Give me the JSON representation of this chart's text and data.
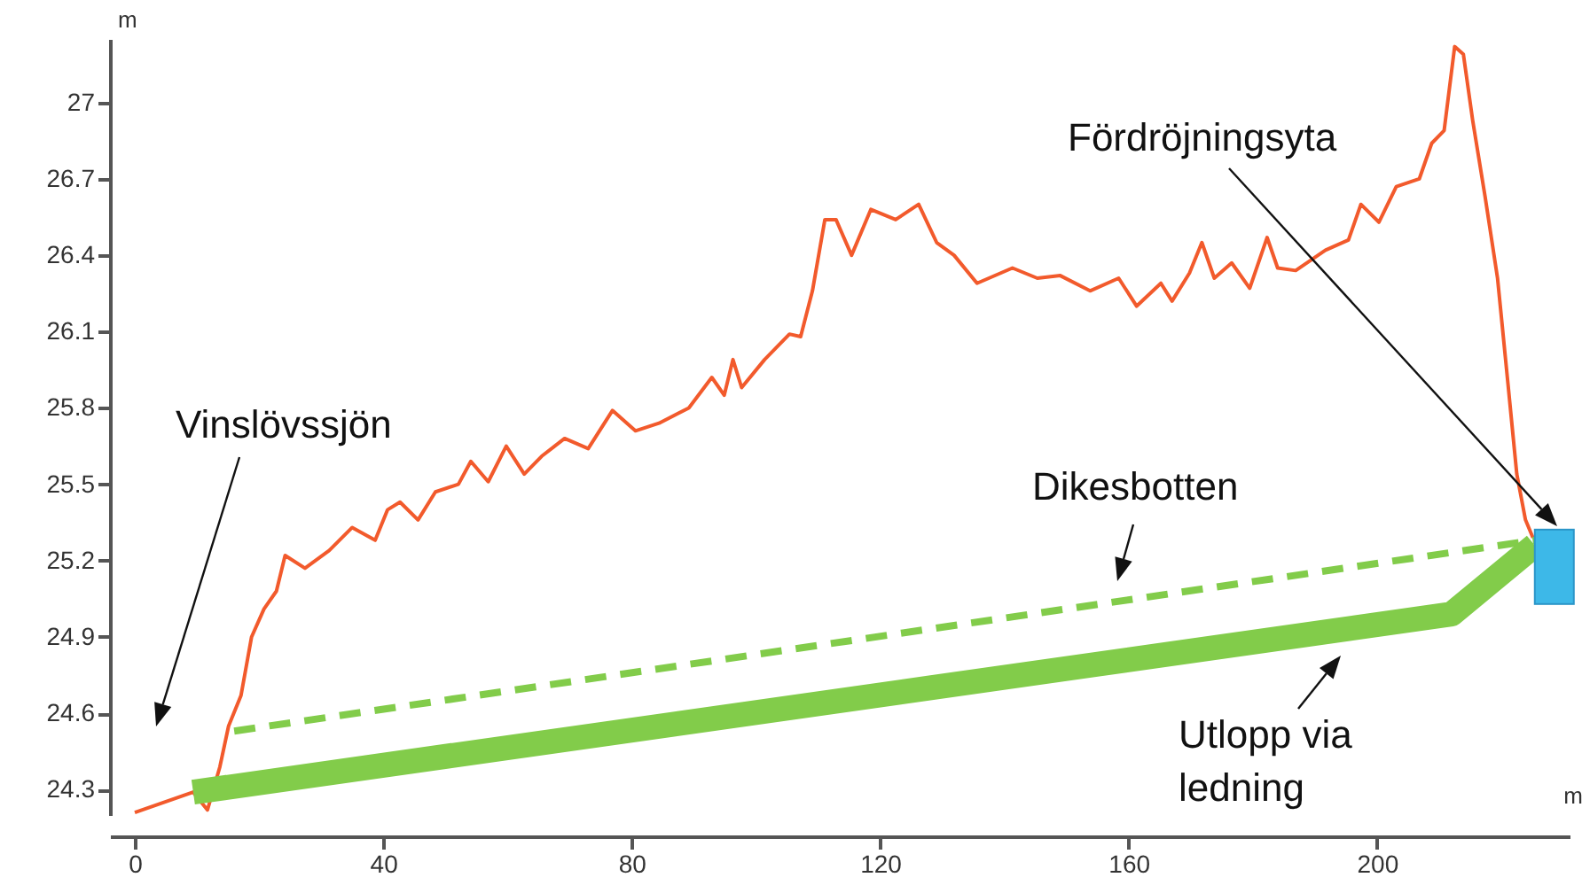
{
  "chart_data": {
    "type": "line",
    "xlabel": "m",
    "ylabel": "m",
    "xlim": [
      -4,
      231
    ],
    "ylim": [
      24.2,
      27.25
    ],
    "xticks": [
      0,
      40,
      80,
      120,
      160,
      200
    ],
    "yticks": [
      24.3,
      24.6,
      24.9,
      25.2,
      25.5,
      25.8,
      26.1,
      26.4,
      26.7,
      27
    ],
    "marker": "none",
    "series": [
      {
        "color": "#f25a2c",
        "line_style": "solid",
        "x": [
          0,
          9.4,
          11.7,
          13.7,
          15.1,
          17.1,
          18.8,
          20.8,
          22.8,
          24.2,
          27.4,
          31.3,
          35.0,
          38.7,
          40.7,
          42.7,
          45.6,
          48.4,
          52.1,
          54.1,
          56.9,
          59.8,
          62.7,
          65.5,
          69.2,
          73.0,
          76.9,
          80.6,
          84.4,
          89.2,
          92.9,
          94.9,
          96.3,
          97.7,
          101.4,
          105.4,
          107.2,
          109.1,
          111.1,
          112.9,
          115.4,
          118.5,
          122.5,
          126.2,
          129.1,
          131.9,
          135.6,
          141.3,
          145.3,
          149.0,
          153.8,
          158.4,
          161.3,
          165.2,
          167.0,
          169.8,
          171.8,
          173.8,
          176.6,
          179.5,
          182.3,
          184.0,
          186.9,
          191.7,
          195.4,
          197.4,
          200.3,
          203.1,
          206.8,
          208.8,
          210.8,
          212.5,
          213.9,
          215.4,
          217.4,
          219.4,
          221.1,
          222.5,
          223.9,
          225.1
        ],
        "values": [
          24.21,
          24.29,
          24.22,
          24.39,
          24.55,
          24.67,
          24.9,
          25.01,
          25.08,
          25.22,
          25.17,
          25.24,
          25.33,
          25.28,
          25.4,
          25.43,
          25.36,
          25.47,
          25.5,
          25.59,
          25.51,
          25.65,
          25.54,
          25.61,
          25.68,
          25.64,
          25.79,
          25.71,
          25.74,
          25.8,
          25.92,
          25.85,
          25.99,
          25.88,
          25.99,
          26.09,
          26.08,
          26.26,
          26.54,
          26.54,
          26.4,
          26.58,
          26.54,
          26.6,
          26.45,
          26.4,
          26.29,
          26.35,
          26.31,
          26.32,
          26.26,
          26.31,
          26.2,
          26.29,
          26.22,
          26.33,
          26.45,
          26.31,
          26.37,
          26.27,
          26.47,
          26.35,
          26.34,
          26.42,
          26.46,
          26.6,
          26.53,
          26.67,
          26.7,
          26.84,
          26.89,
          27.22,
          27.19,
          26.93,
          26.63,
          26.31,
          25.89,
          25.54,
          25.36,
          25.29
        ]
      },
      {
        "color": "#82cc4a",
        "line_style": "dashed",
        "x": [
          16,
          225.4
        ],
        "values": [
          24.53,
          25.28
        ]
      },
      {
        "color": "#82cc4a",
        "line_style": "solid",
        "x": [
          9.4,
          212,
          225.4
        ],
        "values": [
          24.29,
          24.99,
          25.26
        ]
      }
    ],
    "annotations": [
      "Vinslövssjön",
      "Fördröjningsyta",
      "Dikesbotten",
      "Utlopp via ledning"
    ]
  }
}
